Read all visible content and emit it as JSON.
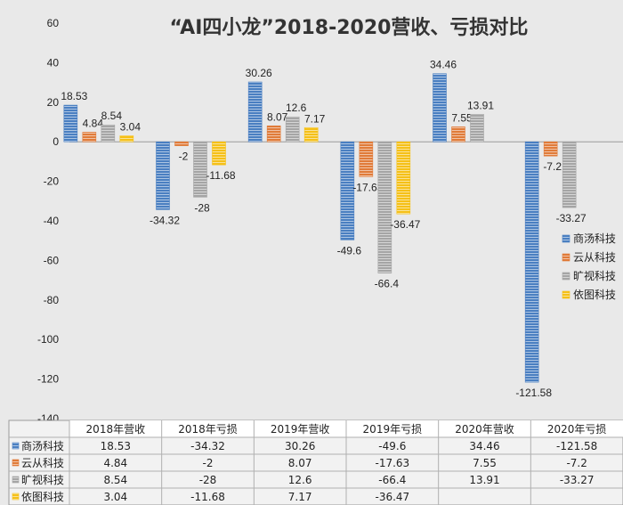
{
  "chart_data": {
    "type": "bar",
    "title": "“AI四小龙”2018-2020营收、亏损对比",
    "categories": [
      "2018年营收",
      "2018年亏损",
      "2019年营收",
      "2019年亏损",
      "2020年营收",
      "2020年亏损"
    ],
    "series": [
      {
        "name": "商汤科技",
        "color": "#4a7fc1",
        "values": [
          18.53,
          -34.32,
          30.26,
          -49.6,
          34.46,
          -121.58
        ]
      },
      {
        "name": "云从科技",
        "color": "#e07b39",
        "values": [
          4.84,
          -2,
          8.07,
          -17.63,
          7.55,
          -7.2
        ]
      },
      {
        "name": "旷视科技",
        "color": "#a5a5a5",
        "values": [
          8.54,
          -28,
          12.6,
          -66.4,
          13.91,
          -33.27
        ]
      },
      {
        "name": "依图科技",
        "color": "#f5c018",
        "values": [
          3.04,
          -11.68,
          7.17,
          -36.47,
          null,
          null
        ]
      }
    ],
    "ylim": [
      -140,
      60
    ],
    "yticks": [
      60,
      40,
      20,
      0,
      -20,
      -40,
      -60,
      -80,
      -100,
      -120,
      -140
    ],
    "legend": "right",
    "grid": false,
    "data_table": true
  }
}
